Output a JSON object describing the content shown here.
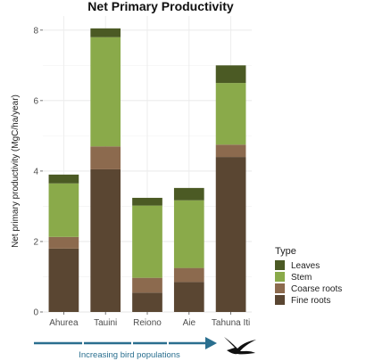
{
  "chart_data": {
    "type": "bar",
    "stacked": true,
    "title": "Net Primary Productivity",
    "ylabel": "Net primary productivity (MgC/ha/year)",
    "xlabel": "",
    "categories": [
      "Ahurea",
      "Tauini",
      "Reiono",
      "Aie",
      "Tahuna Iti"
    ],
    "ylim": [
      0,
      8.4
    ],
    "yticks": [
      0,
      2,
      4,
      6,
      8
    ],
    "grid": true,
    "legend": {
      "title": "Type",
      "placement": "right"
    },
    "series": [
      {
        "name": "Fine roots",
        "color": "#5a4632",
        "values": [
          1.8,
          4.05,
          0.55,
          0.85,
          4.4
        ]
      },
      {
        "name": "Coarse roots",
        "color": "#8c6a4e",
        "values": [
          0.33,
          0.65,
          0.42,
          0.4,
          0.35
        ]
      },
      {
        "name": "Stem",
        "color": "#8aaa4a",
        "values": [
          1.52,
          3.1,
          2.05,
          1.92,
          1.75
        ]
      },
      {
        "name": "Leaves",
        "color": "#4b5a24",
        "values": [
          0.25,
          0.25,
          0.22,
          0.35,
          0.5
        ]
      }
    ]
  },
  "annotation": {
    "arrow_label": "Increasing bird populations",
    "arrow_color": "#2a6f8f",
    "icon": "flying-bird-icon"
  }
}
